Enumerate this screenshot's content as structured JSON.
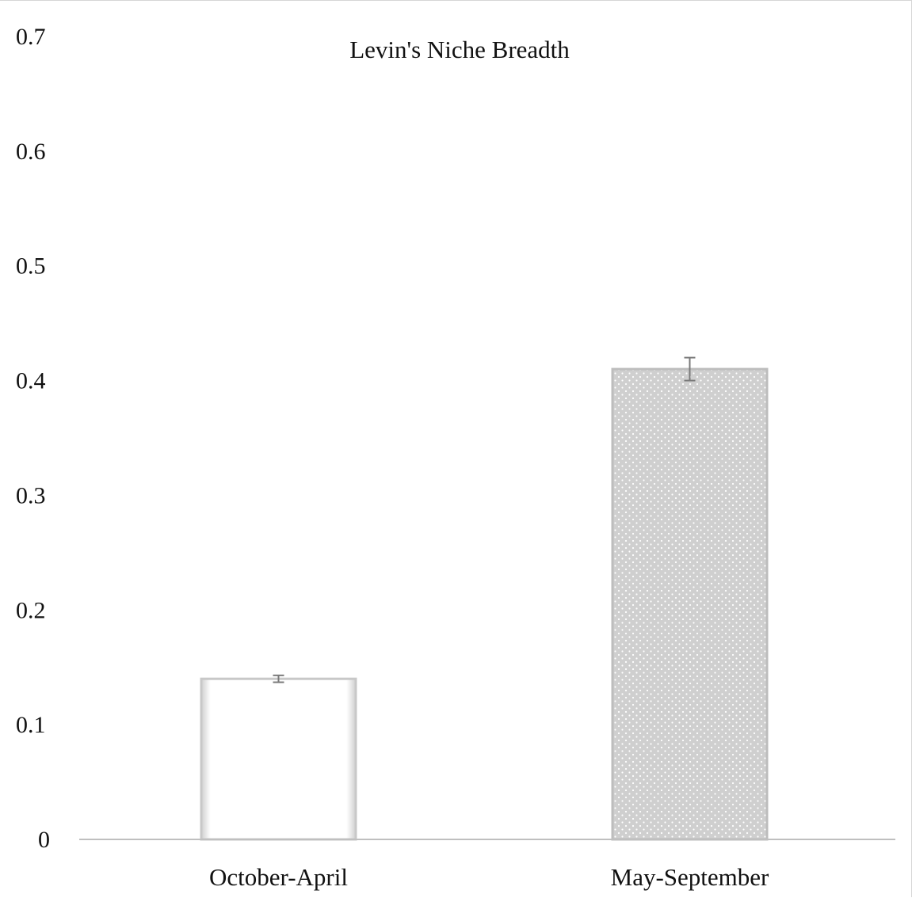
{
  "chart_data": {
    "type": "bar",
    "title": "Levin's Niche Breadth",
    "xlabel": "",
    "ylabel": "",
    "categories": [
      "October-April",
      "May-September"
    ],
    "values": [
      0.14,
      0.41
    ],
    "error": [
      0.003,
      0.01
    ],
    "ylim": [
      0,
      0.7
    ],
    "yticks": [
      0,
      0.1,
      0.2,
      0.3,
      0.4,
      0.5,
      0.6,
      0.7
    ],
    "ytick_labels": [
      "0",
      "0.1",
      "0.2",
      "0.3",
      "0.4",
      "0.5",
      "0.6",
      "0.7"
    ],
    "grid": false,
    "legend": "none",
    "bar_styles": [
      {
        "fill": "#ffffff",
        "pattern": "none",
        "edge": "#c8c8c8"
      },
      {
        "fill": "#cfcfcf",
        "pattern": "dots",
        "edge": "#bdbdbd"
      }
    ],
    "axis_color": "#bfbfbf",
    "errorbar_color": "#7a7a7a"
  }
}
